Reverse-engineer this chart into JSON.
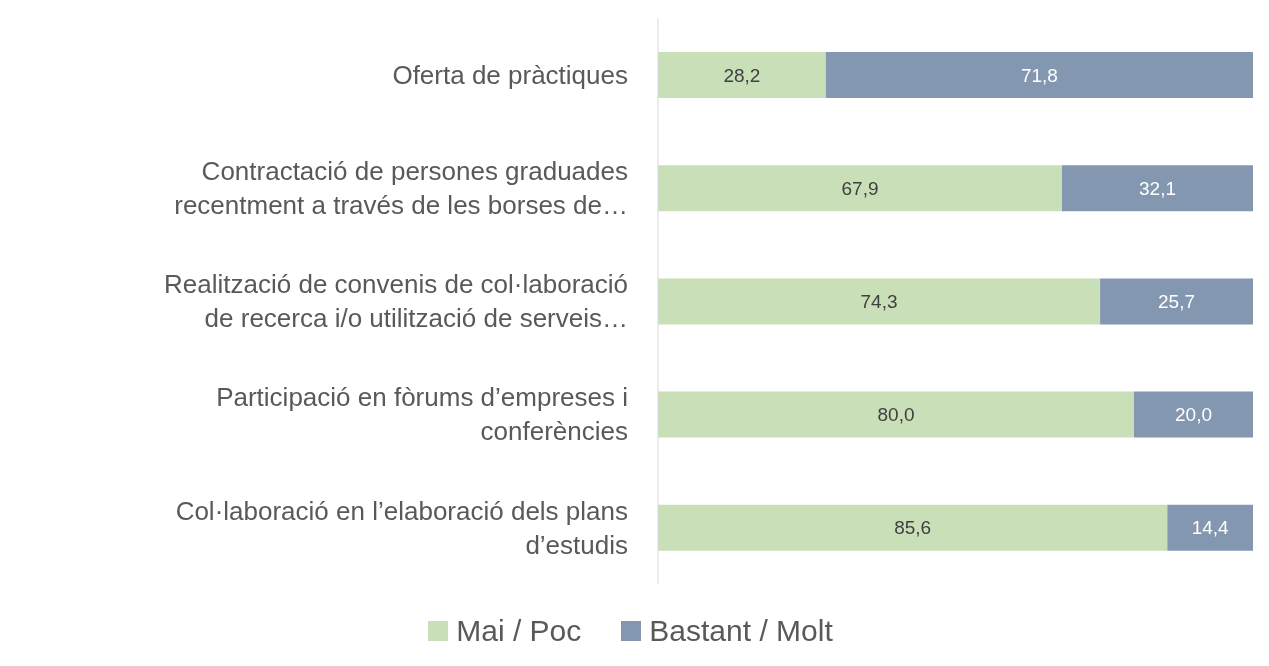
{
  "chart_data": {
    "type": "bar",
    "orientation": "horizontal",
    "stacked": true,
    "categories": [
      "Oferta de pràctiques",
      "Contractació de persones graduades recentment a través de les borses de…",
      "Realització de convenis de col·laboració de recerca i/o utilització de serveis…",
      "Participació en fòrums d’empreses i conferències",
      "Col·laboració en l’elaboració dels plans d’estudis"
    ],
    "series": [
      {
        "name": "Mai / Poc",
        "color": "#c9dfb8",
        "values": [
          28.2,
          67.9,
          74.3,
          80.0,
          85.6
        ],
        "value_labels": [
          "28,2",
          "67,9",
          "74,3",
          "80,0",
          "85,6"
        ]
      },
      {
        "name": "Bastant / Molt",
        "color": "#8497b0",
        "values": [
          71.8,
          32.1,
          25.7,
          20.0,
          14.4
        ],
        "value_labels": [
          "71,8",
          "32,1",
          "25,7",
          "20,0",
          "14,4"
        ]
      }
    ],
    "legend": "bottom",
    "grid": false
  }
}
